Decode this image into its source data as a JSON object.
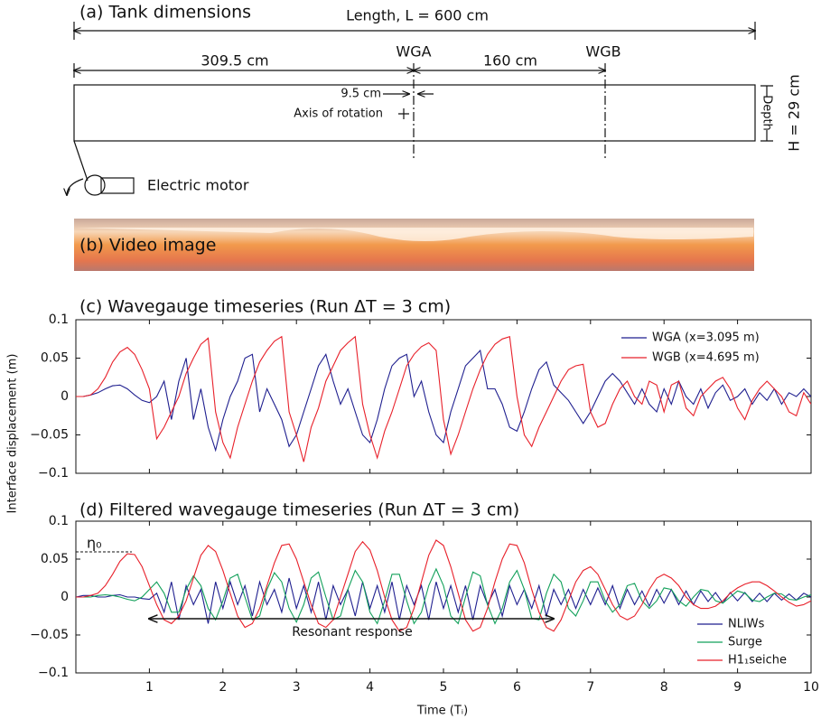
{
  "diagram": {
    "title": "(a) Tank dimensions",
    "length": "Length, L = 600 cm",
    "dist_wga": "309.5 cm",
    "wga": "WGA",
    "dist_ab": "160 cm",
    "wgb": "WGB",
    "offset": "9.5 cm",
    "axis": "Axis of rotation",
    "depth": "Depth",
    "height": "H = 29 cm",
    "motor": "Electric motor",
    "video": "(b) Video image"
  },
  "shared_ylabel": "Interface displacement (m)",
  "chart_data": [
    {
      "type": "line",
      "title": "(c) Wavegauge timeseries (Run ΔT = 3 cm)",
      "x": [
        0,
        0.1,
        0.2,
        0.3,
        0.4,
        0.5,
        0.6,
        0.7,
        0.8,
        0.9,
        1,
        1.1,
        1.2,
        1.3,
        1.4,
        1.5,
        1.6,
        1.7,
        1.8,
        1.9,
        2,
        2.1,
        2.2,
        2.3,
        2.4,
        2.5,
        2.6,
        2.7,
        2.8,
        2.9,
        3,
        3.1,
        3.2,
        3.3,
        3.4,
        3.5,
        3.6,
        3.7,
        3.8,
        3.9,
        4,
        4.1,
        4.2,
        4.3,
        4.4,
        4.5,
        4.6,
        4.7,
        4.8,
        4.9,
        5,
        5.1,
        5.2,
        5.3,
        5.4,
        5.5,
        5.6,
        5.7,
        5.8,
        5.9,
        6,
        6.1,
        6.2,
        6.3,
        6.4,
        6.5,
        6.6,
        6.7,
        6.8,
        6.9,
        7,
        7.1,
        7.2,
        7.3,
        7.4,
        7.5,
        7.6,
        7.7,
        7.8,
        7.9,
        8,
        8.1,
        8.2,
        8.3,
        8.4,
        8.5,
        8.6,
        8.7,
        8.8,
        8.9,
        9,
        9.1,
        9.2,
        9.3,
        9.4,
        9.5,
        9.6,
        9.7,
        9.8,
        9.9,
        10
      ],
      "series": [
        {
          "name": "WGA (x=3.095 m)",
          "color": "#1f1f8f",
          "values": [
            0,
            0,
            0.002,
            0.005,
            0.01,
            0.014,
            0.015,
            0.01,
            0.002,
            -0.005,
            -0.008,
            0,
            0.02,
            -0.03,
            0.02,
            0.05,
            -0.03,
            0.01,
            -0.04,
            -0.07,
            -0.03,
            0,
            0.02,
            0.05,
            0.055,
            -0.02,
            0.01,
            -0.01,
            -0.03,
            -0.065,
            -0.05,
            -0.02,
            0.01,
            0.04,
            0.055,
            0.02,
            -0.01,
            0.01,
            -0.02,
            -0.05,
            -0.06,
            -0.03,
            0.01,
            0.04,
            0.05,
            0.055,
            0,
            0.02,
            -0.02,
            -0.05,
            -0.06,
            -0.02,
            0.01,
            0.04,
            0.05,
            0.06,
            0.01,
            0.01,
            -0.01,
            -0.04,
            -0.045,
            -0.02,
            0.01,
            0.035,
            0.045,
            0.015,
            0.005,
            -0.005,
            -0.02,
            -0.035,
            -0.02,
            0,
            0.02,
            0.03,
            0.02,
            0.005,
            -0.01,
            0.01,
            -0.01,
            -0.02,
            0.01,
            -0.01,
            0.02,
            0,
            -0.01,
            0.01,
            -0.015,
            0.005,
            0.015,
            -0.005,
            0,
            0.01,
            -0.01,
            0.005,
            -0.005,
            0.01,
            -0.01,
            0.005,
            0,
            0.01,
            0
          ]
        },
        {
          "name": "WGB (x=4.695 m)",
          "color": "#e8202a",
          "values": [
            0,
            0,
            0.002,
            0.01,
            0.025,
            0.045,
            0.058,
            0.064,
            0.055,
            0.035,
            0.01,
            -0.055,
            -0.04,
            -0.02,
            0,
            0.03,
            0.05,
            0.068,
            0.076,
            -0.02,
            -0.06,
            -0.08,
            -0.04,
            -0.01,
            0.02,
            0.045,
            0.06,
            0.072,
            0.078,
            -0.02,
            -0.05,
            -0.085,
            -0.04,
            -0.015,
            0.02,
            0.04,
            0.06,
            0.07,
            0.078,
            -0.01,
            -0.05,
            -0.08,
            -0.045,
            -0.02,
            0.01,
            0.04,
            0.055,
            0.065,
            0.07,
            0.06,
            -0.03,
            -0.075,
            -0.05,
            -0.02,
            0.01,
            0.035,
            0.055,
            0.068,
            0.075,
            0.078,
            0,
            -0.05,
            -0.065,
            -0.04,
            -0.02,
            0,
            0.02,
            0.035,
            0.04,
            0.042,
            -0.02,
            -0.04,
            -0.035,
            -0.01,
            0.01,
            0.02,
            0,
            -0.01,
            0.02,
            0.015,
            -0.02,
            0.015,
            0.02,
            -0.015,
            -0.025,
            0,
            0.01,
            0.02,
            0.025,
            0.01,
            -0.015,
            -0.03,
            -0.005,
            0.01,
            0.02,
            0.01,
            0,
            -0.02,
            -0.025,
            0.005,
            -0.01
          ]
        }
      ],
      "xlim": [
        0,
        10
      ],
      "xticks": [
        1,
        2,
        3,
        4,
        5,
        6,
        7,
        8,
        9,
        10
      ],
      "ylim": [
        -0.1,
        0.1
      ],
      "yticks": [
        {
          "value": -0.1,
          "label": "−0.1"
        },
        {
          "value": -0.05,
          "label": "−0.05"
        },
        0,
        0.05,
        0.1
      ],
      "legend": "upper right"
    },
    {
      "type": "line",
      "title": "(d) Filtered wavegauge timeseries (Run ΔT = 3 cm)",
      "xlabel": "Time (Tᵢ)",
      "annotations": [
        "η₀",
        "Resonant response"
      ],
      "x": [
        0,
        0.1,
        0.2,
        0.3,
        0.4,
        0.5,
        0.6,
        0.7,
        0.8,
        0.9,
        1,
        1.1,
        1.2,
        1.3,
        1.4,
        1.5,
        1.6,
        1.7,
        1.8,
        1.9,
        2,
        2.1,
        2.2,
        2.3,
        2.4,
        2.5,
        2.6,
        2.7,
        2.8,
        2.9,
        3,
        3.1,
        3.2,
        3.3,
        3.4,
        3.5,
        3.6,
        3.7,
        3.8,
        3.9,
        4,
        4.1,
        4.2,
        4.3,
        4.4,
        4.5,
        4.6,
        4.7,
        4.8,
        4.9,
        5,
        5.1,
        5.2,
        5.3,
        5.4,
        5.5,
        5.6,
        5.7,
        5.8,
        5.9,
        6,
        6.1,
        6.2,
        6.3,
        6.4,
        6.5,
        6.6,
        6.7,
        6.8,
        6.9,
        7,
        7.1,
        7.2,
        7.3,
        7.4,
        7.5,
        7.6,
        7.7,
        7.8,
        7.9,
        8,
        8.1,
        8.2,
        8.3,
        8.4,
        8.5,
        8.6,
        8.7,
        8.8,
        8.9,
        9,
        9.1,
        9.2,
        9.3,
        9.4,
        9.5,
        9.6,
        9.7,
        9.8,
        9.9,
        10
      ],
      "series": [
        {
          "name": "NLIWs",
          "color": "#1f1f8f",
          "values": [
            0,
            0.002,
            0.002,
            0,
            0,
            0.002,
            0.003,
            0,
            0,
            -0.002,
            -0.003,
            0.005,
            -0.02,
            0.02,
            -0.03,
            0.015,
            -0.01,
            0.01,
            -0.035,
            0.02,
            -0.015,
            0.02,
            -0.01,
            0.015,
            -0.025,
            0.02,
            -0.01,
            0.01,
            -0.02,
            0.025,
            -0.015,
            0.015,
            -0.02,
            0.02,
            -0.03,
            0.015,
            -0.01,
            0.01,
            -0.025,
            0.02,
            -0.015,
            0.015,
            -0.02,
            0.02,
            -0.03,
            0.015,
            -0.01,
            0.015,
            -0.03,
            0.02,
            -0.015,
            0.015,
            -0.02,
            0.015,
            -0.03,
            0.015,
            -0.01,
            0.01,
            -0.025,
            0.015,
            -0.01,
            0.01,
            -0.015,
            0.015,
            -0.025,
            0.01,
            -0.01,
            0.01,
            -0.015,
            0.01,
            -0.01,
            0.012,
            -0.01,
            0.015,
            -0.015,
            0.01,
            -0.01,
            0.008,
            -0.012,
            0.01,
            -0.008,
            0.01,
            -0.01,
            0.008,
            -0.01,
            0.008,
            -0.006,
            0.006,
            -0.008,
            0.006,
            -0.005,
            0.006,
            -0.006,
            0.005,
            -0.006,
            0.005,
            -0.004,
            0.004,
            -0.004,
            0.005,
            0
          ]
        },
        {
          "name": "Surge",
          "color": "#12a05a",
          "values": [
            0,
            0,
            0,
            0.002,
            0.003,
            0.002,
            0,
            -0.003,
            -0.005,
            0,
            0.01,
            0.02,
            0.005,
            -0.02,
            -0.02,
            0.01,
            0.028,
            0.015,
            -0.015,
            -0.03,
            -0.005,
            0.025,
            0.03,
            0,
            -0.03,
            -0.025,
            0.01,
            0.032,
            0.02,
            -0.015,
            -0.033,
            -0.01,
            0.025,
            0.033,
            0,
            -0.03,
            -0.025,
            0.01,
            0.035,
            0.02,
            -0.02,
            -0.035,
            -0.005,
            0.03,
            0.03,
            -0.005,
            -0.035,
            -0.02,
            0.015,
            0.037,
            0.015,
            -0.025,
            -0.035,
            0,
            0.033,
            0.028,
            -0.01,
            -0.035,
            -0.015,
            0.02,
            0.035,
            0.01,
            -0.028,
            -0.03,
            0.005,
            0.03,
            0.02,
            -0.015,
            -0.025,
            -0.005,
            0.02,
            0.02,
            -0.005,
            -0.02,
            -0.01,
            0.015,
            0.018,
            -0.005,
            -0.015,
            -0.005,
            0.012,
            0.01,
            -0.005,
            -0.012,
            0,
            0.01,
            0.008,
            -0.005,
            -0.008,
            0,
            0.008,
            0.005,
            -0.004,
            -0.006,
            0,
            0.005,
            0.004,
            -0.003,
            -0.004,
            0,
            0.003
          ]
        },
        {
          "name": "H1₁seiche",
          "color": "#e8202a",
          "values": [
            0,
            0,
            0.002,
            0.005,
            0.015,
            0.03,
            0.047,
            0.057,
            0.056,
            0.04,
            0.015,
            -0.01,
            -0.03,
            -0.035,
            -0.025,
            -0.005,
            0.025,
            0.055,
            0.068,
            0.06,
            0.035,
            0.005,
            -0.025,
            -0.04,
            -0.035,
            -0.015,
            0.015,
            0.045,
            0.068,
            0.07,
            0.05,
            0.02,
            -0.01,
            -0.035,
            -0.04,
            -0.03,
            0,
            0.03,
            0.06,
            0.073,
            0.062,
            0.035,
            0,
            -0.03,
            -0.045,
            -0.04,
            -0.015,
            0.02,
            0.055,
            0.075,
            0.068,
            0.04,
            0.005,
            -0.03,
            -0.045,
            -0.04,
            -0.015,
            0.02,
            0.05,
            0.07,
            0.068,
            0.045,
            0.01,
            -0.02,
            -0.04,
            -0.045,
            -0.03,
            -0.005,
            0.02,
            0.035,
            0.04,
            0.03,
            0.01,
            -0.01,
            -0.025,
            -0.03,
            -0.025,
            -0.01,
            0.01,
            0.025,
            0.03,
            0.025,
            0.015,
            0,
            -0.01,
            -0.015,
            -0.015,
            -0.012,
            -0.005,
            0.005,
            0.012,
            0.017,
            0.02,
            0.02,
            0.015,
            0.008,
            0,
            -0.007,
            -0.012,
            -0.01,
            -0.005
          ]
        }
      ],
      "xlim": [
        0,
        10
      ],
      "xticks": [
        1,
        2,
        3,
        4,
        5,
        6,
        7,
        8,
        9,
        10
      ],
      "ylim": [
        -0.1,
        0.1
      ],
      "yticks": [
        {
          "value": -0.1,
          "label": "−0.1"
        },
        {
          "value": -0.05,
          "label": "−0.05"
        },
        0,
        0.05,
        0.1
      ],
      "legend": "lower right"
    }
  ]
}
